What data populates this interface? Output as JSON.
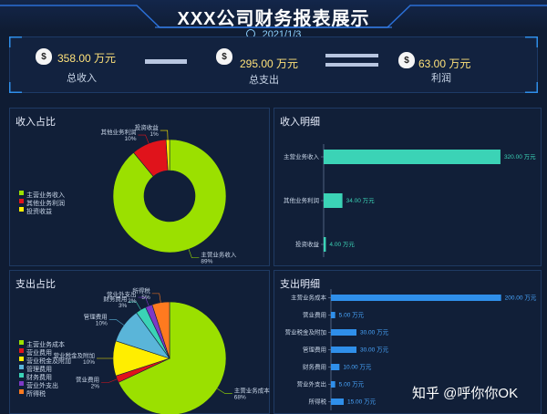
{
  "header": {
    "title": "XXX公司财务报表展示",
    "date": "2021/1/3"
  },
  "kpis": [
    {
      "value": "358.00 万元",
      "label": "总收入",
      "icon": "money-bag-icon"
    },
    {
      "value": "295.00 万元",
      "label": "总支出",
      "icon": "money-bag-icon"
    },
    {
      "value": "63.00 万元",
      "label": "利润",
      "icon": "money-bag-icon"
    }
  ],
  "panels": {
    "income_share": "收入占比",
    "income_detail": "收入明细",
    "expense_share": "支出占比",
    "expense_detail": "支出明细"
  },
  "colors": {
    "green": "#9be000",
    "red": "#e0131b",
    "yellow": "#ffee00",
    "teal": "#3bd3b6",
    "blue": "#2f8fea",
    "cyan": "#5ab5d9",
    "purple": "#7d39c6",
    "orange": "#ff7a1f"
  },
  "chart_data": [
    {
      "type": "pie",
      "title": "收入占比",
      "slices": [
        {
          "name": "主营业务收入",
          "value": 89,
          "label": "89%",
          "color": "#9be000"
        },
        {
          "name": "其他业务利润",
          "value": 10,
          "label": "10%",
          "color": "#e0131b"
        },
        {
          "name": "投资收益",
          "value": 1,
          "label": "1%",
          "color": "#ffee00"
        }
      ],
      "legend": [
        "主营业务收入",
        "其他业务利润",
        "投资收益"
      ],
      "legend_position": "left"
    },
    {
      "type": "bar",
      "title": "收入明细",
      "orientation": "horizontal",
      "categories": [
        "主营业务收入",
        "其他业务利润",
        "投资收益"
      ],
      "values": [
        320,
        34,
        4
      ],
      "value_labels": [
        "320.00 万元",
        "34.00 万元",
        "4.00 万元"
      ],
      "xlim": [
        0,
        330
      ],
      "color": "#3bd3b6"
    },
    {
      "type": "pie",
      "title": "支出占比",
      "slices": [
        {
          "name": "主营业务成本",
          "value": 68,
          "label": "68%",
          "color": "#9be000"
        },
        {
          "name": "营业费用",
          "value": 2,
          "label": "2%",
          "color": "#e0131b"
        },
        {
          "name": "营业税金及附加",
          "value": 10,
          "label": "10%",
          "color": "#ffee00"
        },
        {
          "name": "管理费用",
          "value": 10,
          "label": "10%",
          "color": "#5ab5d9"
        },
        {
          "name": "财务费用",
          "value": 3,
          "label": "3%",
          "color": "#3bd3b6"
        },
        {
          "name": "营业外支出",
          "value": 2,
          "label": "2%",
          "color": "#7d39c6"
        },
        {
          "name": "所得税",
          "value": 5,
          "label": "5%",
          "color": "#ff7a1f"
        }
      ],
      "legend": [
        "主营业务成本",
        "营业费用",
        "营业税金及附加",
        "管理费用",
        "财务费用",
        "营业外支出",
        "所得税"
      ],
      "legend_position": "left"
    },
    {
      "type": "bar",
      "title": "支出明细",
      "orientation": "horizontal",
      "categories": [
        "主营业务成本",
        "营业费用",
        "营业税金及附加",
        "管理费用",
        "财务费用",
        "营业外支出",
        "所得税"
      ],
      "values": [
        200,
        5,
        30,
        30,
        10,
        5,
        15
      ],
      "value_labels": [
        "200.00 万元",
        "5.00 万元",
        "30.00 万元",
        "30.00 万元",
        "10.00 万元",
        "5.00 万元",
        "15.00 万元"
      ],
      "xlim": [
        0,
        210
      ],
      "color": "#2f8fea"
    }
  ],
  "watermark": "知乎 @呼你你OK"
}
